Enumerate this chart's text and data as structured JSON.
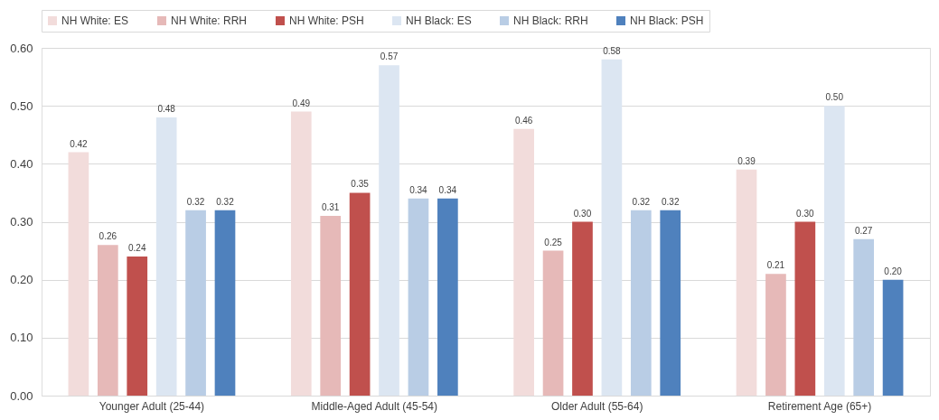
{
  "chart_data": {
    "type": "bar",
    "categories": [
      "Younger Adult (25-44)",
      "Middle-Aged Adult (45-54)",
      "Older Adult (55-64)",
      "Retirement Age (65+)"
    ],
    "series": [
      {
        "name": "NH White: ES",
        "color": "#f2dcdb",
        "values": [
          0.42,
          0.49,
          0.46,
          0.39
        ],
        "value_labels": [
          "0.42",
          "0.49",
          "0.46",
          "0.39"
        ]
      },
      {
        "name": "NH White: RRH",
        "color": "#e6b9b8",
        "values": [
          0.26,
          0.31,
          0.25,
          0.21
        ],
        "value_labels": [
          "0.26",
          "0.31",
          "0.25",
          "0.21"
        ]
      },
      {
        "name": "NH White: PSH",
        "color": "#c0504d",
        "values": [
          0.24,
          0.35,
          0.3,
          0.3
        ],
        "value_labels": [
          "0.24",
          "0.35",
          "0.30",
          "0.30"
        ]
      },
      {
        "name": "NH Black: ES",
        "color": "#dce6f2",
        "values": [
          0.48,
          0.57,
          0.58,
          0.5
        ],
        "value_labels": [
          "0.48",
          "0.57",
          "0.58",
          "0.50"
        ]
      },
      {
        "name": "NH Black: RRH",
        "color": "#b9cde5",
        "values": [
          0.32,
          0.34,
          0.32,
          0.27
        ],
        "value_labels": [
          "0.32",
          "0.34",
          "0.32",
          "0.27"
        ]
      },
      {
        "name": "NH Black: PSH",
        "color": "#4f81bd",
        "values": [
          0.32,
          0.34,
          0.32,
          0.2
        ],
        "value_labels": [
          "0.32",
          "0.34",
          "0.32",
          "0.20"
        ]
      }
    ],
    "ylim": [
      0,
      0.6
    ],
    "yticks": [
      {
        "value": 0,
        "label": "0.00"
      },
      {
        "value": 0.1,
        "label": "0.10"
      },
      {
        "value": 0.2,
        "label": "0.20"
      },
      {
        "value": 0.3,
        "label": "0.30"
      },
      {
        "value": 0.4,
        "label": "0.40"
      },
      {
        "value": 0.5,
        "label": "0.50"
      },
      {
        "value": 0.6,
        "label": "0.60"
      }
    ],
    "grid": "y",
    "legend": "top"
  }
}
